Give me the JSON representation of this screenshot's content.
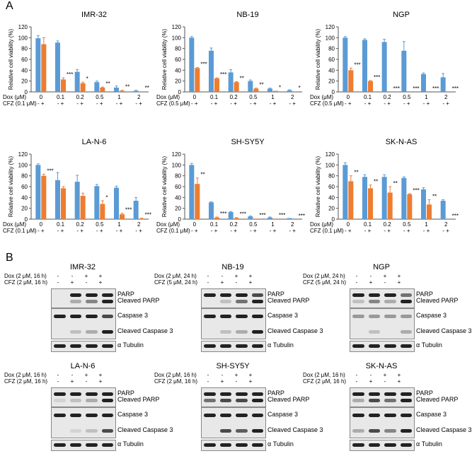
{
  "panel_a_label": "A",
  "panel_b_label": "B",
  "colors": {
    "dox": "#5b9bd5",
    "combo": "#ed7d31",
    "axis": "#555555"
  },
  "chart_data": [
    {
      "type": "bar",
      "title": "IMR-32",
      "ylabel": "Relative cell viability (%)",
      "ylim": [
        0,
        120
      ],
      "yticks": [
        "0",
        "20",
        "40",
        "60",
        "80",
        "100",
        "120"
      ],
      "categories": [
        "0",
        "0.1",
        "0.2",
        "0.5",
        "1",
        "2"
      ],
      "xlabel_row1": "Dox (μM)",
      "xlabel_row2": "CFZ (0.1 μM)",
      "series": [
        {
          "name": "Dox",
          "values": [
            99,
            91,
            37,
            18,
            8,
            2
          ],
          "errors": [
            5,
            3,
            4,
            2,
            3,
            1
          ]
        },
        {
          "name": "Dox + CFZ",
          "values": [
            88,
            23,
            16,
            8,
            2,
            1
          ],
          "errors": [
            12,
            3,
            2,
            1,
            1,
            0
          ]
        }
      ],
      "significance": [
        "",
        "***",
        "*",
        "**",
        "**",
        "**"
      ]
    },
    {
      "type": "bar",
      "title": "NB-19",
      "ylabel": "Relative cell viability (%)",
      "ylim": [
        0,
        120
      ],
      "yticks": [
        "0",
        "20",
        "40",
        "60",
        "80",
        "100",
        "120"
      ],
      "categories": [
        "0",
        "0.1",
        "0.2",
        "0.5",
        "1",
        "2"
      ],
      "xlabel_row1": "Dox (μM)",
      "xlabel_row2": "CFZ (0.5 μM)",
      "series": [
        {
          "name": "Dox",
          "values": [
            100,
            76,
            36,
            20,
            6,
            3
          ],
          "errors": [
            2,
            5,
            5,
            2,
            1,
            1
          ]
        },
        {
          "name": "Dox + CFZ",
          "values": [
            44,
            25,
            18,
            6,
            2,
            1
          ],
          "errors": [
            1,
            1,
            1,
            1,
            0,
            0
          ]
        }
      ],
      "significance": [
        "***",
        "***",
        "**",
        "**",
        "*",
        "*"
      ]
    },
    {
      "type": "bar",
      "title": "NGP",
      "ylabel": "Relative cell viability (%)",
      "ylim": [
        0,
        120
      ],
      "yticks": [
        "0",
        "20",
        "40",
        "60",
        "80",
        "100",
        "120"
      ],
      "categories": [
        "0",
        "0.1",
        "0.2",
        "0.5",
        "1",
        "2"
      ],
      "xlabel_row1": "Dox (μM)",
      "xlabel_row2": "CFZ (0.5 μM)",
      "series": [
        {
          "name": "Dox",
          "values": [
            100,
            96,
            92,
            76,
            33,
            27
          ],
          "errors": [
            2,
            2,
            5,
            17,
            2,
            7
          ]
        },
        {
          "name": "Dox + CFZ",
          "values": [
            40,
            20,
            0,
            0,
            0,
            0
          ],
          "errors": [
            4,
            1,
            0,
            0,
            0,
            0
          ]
        }
      ],
      "significance": [
        "***",
        "***",
        "***",
        "***",
        "***",
        "***"
      ]
    },
    {
      "type": "bar",
      "title": "LA-N-6",
      "ylabel": "Relative cell viability (%)",
      "ylim": [
        0,
        120
      ],
      "yticks": [
        "0",
        "20",
        "40",
        "60",
        "80",
        "100",
        "120"
      ],
      "categories": [
        "0",
        "0.1",
        "0.2",
        "0.5",
        "1",
        "2"
      ],
      "xlabel_row1": "Dox (μM)",
      "xlabel_row2": "CFZ (0.1 μM)",
      "series": [
        {
          "name": "Dox",
          "values": [
            100,
            72,
            69,
            61,
            58,
            34
          ],
          "errors": [
            2,
            14,
            12,
            3,
            3,
            6
          ]
        },
        {
          "name": "Dox + CFZ",
          "values": [
            80,
            57,
            43,
            28,
            9,
            1
          ],
          "errors": [
            3,
            3,
            5,
            6,
            2,
            1
          ]
        }
      ],
      "significance": [
        "***",
        "",
        "",
        "*",
        "***",
        "***"
      ]
    },
    {
      "type": "bar",
      "title": "SH-SY5Y",
      "ylabel": "Relative cell viability (%)",
      "ylim": [
        0,
        120
      ],
      "yticks": [
        "0",
        "20",
        "40",
        "60",
        "80",
        "100",
        "120"
      ],
      "categories": [
        "0",
        "0.1",
        "0.2",
        "0.5",
        "1",
        "2"
      ],
      "xlabel_row1": "Dox (μM)",
      "xlabel_row2": "CFZ (0.1 μM)",
      "series": [
        {
          "name": "Dox",
          "values": [
            100,
            31,
            13,
            5,
            3,
            2
          ],
          "errors": [
            3,
            1,
            1,
            1,
            1,
            0
          ]
        },
        {
          "name": "Dox + CFZ",
          "values": [
            65,
            3,
            2,
            1,
            1,
            0
          ],
          "errors": [
            11,
            1,
            1,
            0,
            0,
            0
          ]
        }
      ],
      "significance": [
        "**",
        "***",
        "***",
        "***",
        "***",
        "***"
      ]
    },
    {
      "type": "bar",
      "title": "SK-N-AS",
      "ylabel": "Relative cell viability (%)",
      "ylim": [
        0,
        120
      ],
      "yticks": [
        "0",
        "20",
        "40",
        "60",
        "80",
        "100",
        "120"
      ],
      "categories": [
        "0",
        "0.1",
        "0.2",
        "0.5",
        "1",
        "2"
      ],
      "xlabel_row1": "Dox (μM)",
      "xlabel_row2": "CFZ (0.1 μM)",
      "series": [
        {
          "name": "Dox",
          "values": [
            100,
            78,
            78,
            76,
            55,
            34
          ],
          "errors": [
            4,
            4,
            4,
            2,
            3,
            2
          ]
        },
        {
          "name": "Dox + CFZ",
          "values": [
            70,
            57,
            49,
            46,
            27,
            0
          ],
          "errors": [
            10,
            6,
            11,
            1,
            9,
            0
          ]
        }
      ],
      "significance": [
        "**",
        "**",
        "**",
        "***",
        "**",
        "***"
      ]
    }
  ],
  "blots": [
    {
      "title": "IMR-32",
      "treat_dox": "Dox (2 μM, 16 h)",
      "treat_cfz": "CFZ (2 μM, 16 h)",
      "dox_signs": [
        "-",
        "-",
        "+",
        "+"
      ],
      "cfz_signs": [
        "-",
        "+",
        "-",
        "+"
      ],
      "labels": [
        "PARP",
        "Cleaved PARP",
        "Caspase 3",
        "Cleaved Caspase 3",
        "α Tubulin"
      ]
    },
    {
      "title": "NB-19",
      "treat_dox": "Dox (2 μM, 24 h)",
      "treat_cfz": "CFZ (5 μM, 24 h)",
      "dox_signs": [
        "-",
        "-",
        "+",
        "+"
      ],
      "cfz_signs": [
        "-",
        "+",
        "-",
        "+"
      ],
      "labels": [
        "PARP",
        "Cleaved PARP",
        "Caspase 3",
        "Cleaved Caspase 3",
        "α Tubulin"
      ]
    },
    {
      "title": "NGP",
      "treat_dox": "Dox (2 μM, 24 h)",
      "treat_cfz": "CFZ (5 μM, 24 h)",
      "dox_signs": [
        "-",
        "-",
        "+",
        "+"
      ],
      "cfz_signs": [
        "-",
        "+",
        "-",
        "+"
      ],
      "labels": [
        "PARP",
        "Cleaved PARP",
        "Caspase 3",
        "Cleaved Caspase 3",
        "α Tubulin"
      ]
    },
    {
      "title": "LA-N-6",
      "treat_dox": "Dox (2 μM, 16 h)",
      "treat_cfz": "CFZ (2 μM, 16 h)",
      "dox_signs": [
        "-",
        "-",
        "+",
        "+"
      ],
      "cfz_signs": [
        "-",
        "+",
        "-",
        "+"
      ],
      "labels": [
        "PARP",
        "Cleaved PARP",
        "Caspase 3",
        "Cleaved Caspase 3",
        "α Tubulin"
      ]
    },
    {
      "title": "SH-SY5Y",
      "treat_dox": "Dox (2 μM, 16 h)",
      "treat_cfz": "CFZ (2 μM, 16 h)",
      "dox_signs": [
        "-",
        "-",
        "+",
        "+"
      ],
      "cfz_signs": [
        "-",
        "+",
        "-",
        "+"
      ],
      "labels": [
        "PARP",
        "Cleaved PARP",
        "Caspase 3",
        "Cleaved Caspase 3",
        "α Tubulin"
      ]
    },
    {
      "title": "SK-N-AS",
      "treat_dox": "Dox (2 μM, 16 h)",
      "treat_cfz": "CFZ (2 μM, 16 h)",
      "dox_signs": [
        "-",
        "-",
        "+",
        "+"
      ],
      "cfz_signs": [
        "-",
        "+",
        "-",
        "+"
      ],
      "labels": [
        "PARP",
        "Cleaved PARP",
        "Caspase 3",
        "Cleaved Caspase 3",
        "α Tubulin"
      ]
    }
  ]
}
